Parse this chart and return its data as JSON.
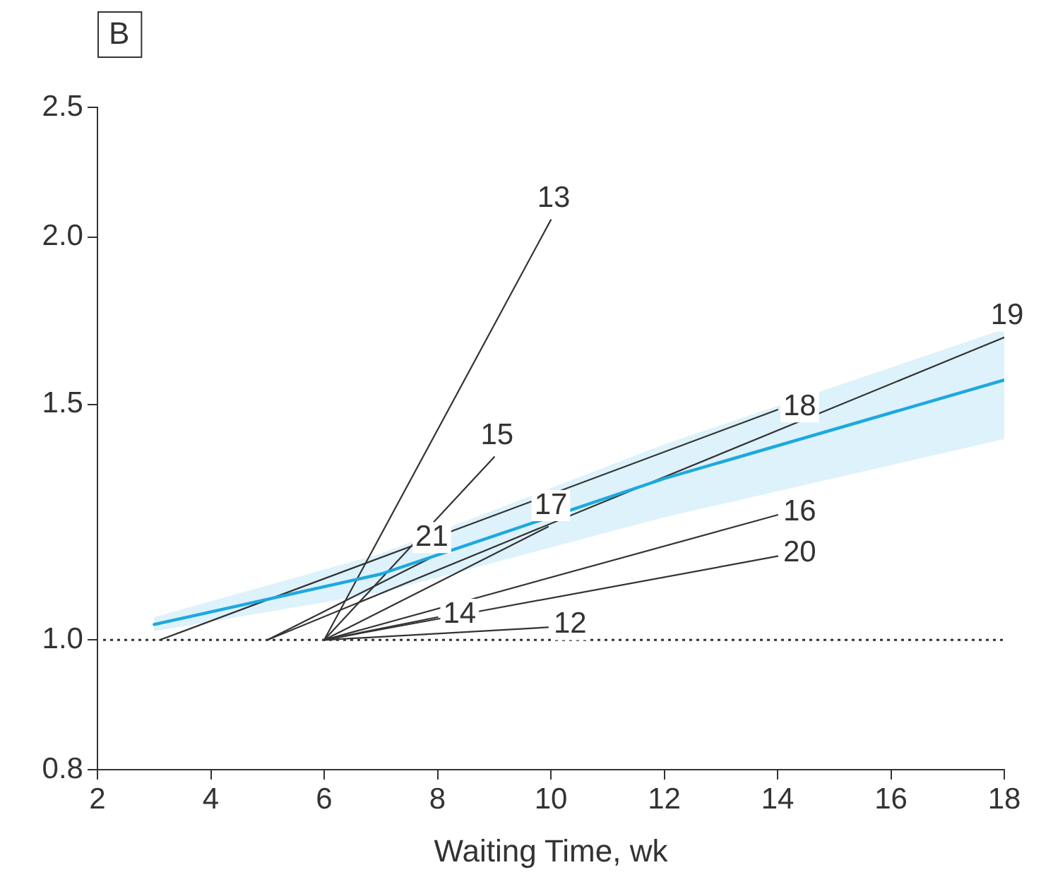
{
  "chart_data": {
    "type": "line",
    "xlabel": "Waiting Time, wk",
    "annotations": [
      "B"
    ],
    "log": "y",
    "grid": false,
    "legend": false,
    "marker": "none",
    "line_style": "solid",
    "xlim": [
      2,
      18
    ],
    "xticks": [
      2,
      4,
      6,
      8,
      10,
      12,
      14,
      16,
      18
    ],
    "ylim": [
      0.8,
      2.5
    ],
    "yticks": [
      {
        "value": 0.8,
        "label": "0.8"
      },
      {
        "value": 1,
        "label": "1.0"
      },
      {
        "value": 1.5,
        "label": "1.5"
      },
      {
        "value": 2,
        "label": "2.0"
      },
      {
        "value": 2.5,
        "label": "2.5"
      }
    ],
    "ref_lines": [
      {
        "axis": "y",
        "value": 1,
        "color": "#333333",
        "line_style": "dotted"
      }
    ],
    "series": [
      {
        "color": "#1ea8e0",
        "x": [
          3,
          7,
          12,
          18
        ],
        "values": [
          1.027,
          1.12,
          1.32,
          1.564
        ],
        "lower": [
          1.015,
          1.085,
          1.235,
          1.413
        ],
        "upper": [
          1.04,
          1.16,
          1.4,
          1.707
        ]
      },
      {
        "name": "13",
        "color": "#333333",
        "x": [
          6,
          10
        ],
        "values": [
          1,
          2.06
        ]
      },
      {
        "name": "15",
        "color": "#333333",
        "x": [
          6,
          9
        ],
        "values": [
          1,
          1.37
        ]
      },
      {
        "name": "17",
        "color": "#333333",
        "x": [
          6,
          9.95
        ],
        "values": [
          1,
          1.215
        ]
      },
      {
        "name": "21",
        "color": "#333333",
        "x": [
          5,
          7.85
        ],
        "values": [
          1,
          1.15
        ]
      },
      {
        "name": "14",
        "color": "#333333",
        "x": [
          6,
          8
        ],
        "values": [
          1,
          1.04
        ]
      },
      {
        "name": "12",
        "color": "#333333",
        "x": [
          6,
          9.95
        ],
        "values": [
          1,
          1.022
        ]
      },
      {
        "name": "16",
        "color": "#333333",
        "x": [
          6,
          14
        ],
        "values": [
          1,
          1.24
        ]
      },
      {
        "name": "20",
        "color": "#333333",
        "x": [
          6,
          14
        ],
        "values": [
          1,
          1.155
        ]
      },
      {
        "name": "18",
        "color": "#333333",
        "x": [
          3.1,
          14
        ],
        "values": [
          1,
          1.486
        ]
      },
      {
        "name": "19",
        "color": "#333333",
        "x": [
          5,
          18
        ],
        "values": [
          1,
          1.683
        ]
      }
    ]
  }
}
